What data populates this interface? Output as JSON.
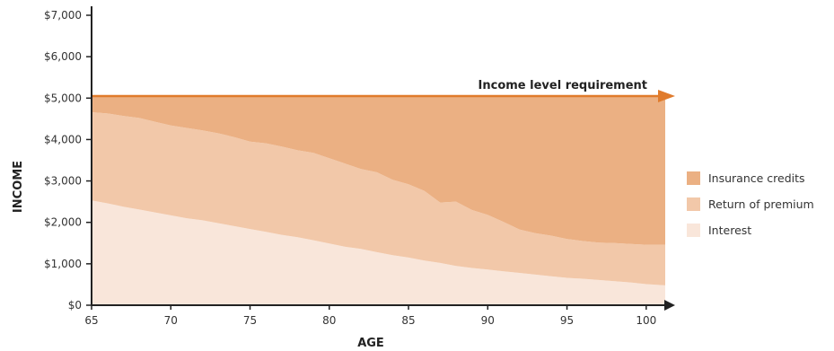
{
  "chart_data": {
    "type": "area",
    "stacked": true,
    "title": "",
    "xlabel": "AGE",
    "ylabel": "INCOME",
    "xlim": [
      65,
      101.2
    ],
    "ylim": [
      0,
      7000
    ],
    "x_ticks": [
      65,
      70,
      75,
      80,
      85,
      90,
      95,
      100
    ],
    "y_ticks": [
      0,
      1000,
      2000,
      3000,
      4000,
      5000,
      6000,
      7000
    ],
    "y_tick_labels": [
      "$0",
      "$1,000",
      "$2,000",
      "$3,000",
      "$4,000",
      "$5,000",
      "$6,000",
      "$7,000"
    ],
    "grid": false,
    "legend_position": "right",
    "x": [
      65,
      66,
      67,
      68,
      69,
      70,
      71,
      72,
      73,
      74,
      75,
      76,
      77,
      78,
      79,
      80,
      81,
      82,
      83,
      84,
      85,
      86,
      87,
      88,
      89,
      90,
      91,
      92,
      93,
      94,
      95,
      96,
      97,
      98,
      99,
      100,
      101.2
    ],
    "series": [
      {
        "name": "Interest",
        "color": "#f9e6da",
        "values": [
          2530,
          2460,
          2380,
          2310,
          2240,
          2170,
          2100,
          2050,
          1980,
          1910,
          1840,
          1770,
          1700,
          1640,
          1570,
          1490,
          1410,
          1360,
          1280,
          1210,
          1150,
          1080,
          1020,
          950,
          900,
          860,
          820,
          780,
          740,
          700,
          660,
          640,
          610,
          580,
          550,
          510,
          480
        ]
      },
      {
        "name": "Return of premium",
        "color": "#f2c8a9",
        "values": [
          2130,
          2170,
          2190,
          2210,
          2190,
          2170,
          2180,
          2170,
          2170,
          2150,
          2110,
          2140,
          2130,
          2100,
          2110,
          2060,
          2010,
          1930,
          1930,
          1820,
          1770,
          1680,
          1460,
          1550,
          1400,
          1320,
          1190,
          1050,
          1000,
          980,
          940,
          910,
          900,
          920,
          930,
          950,
          980
        ]
      },
      {
        "name": "Insurance credits",
        "color": "#ebb083",
        "values": [
          390,
          420,
          480,
          530,
          620,
          710,
          770,
          830,
          900,
          990,
          1100,
          1140,
          1220,
          1310,
          1370,
          1500,
          1630,
          1760,
          1840,
          2020,
          2130,
          2290,
          2570,
          2550,
          2750,
          2870,
          3040,
          3220,
          3310,
          3370,
          3450,
          3500,
          3540,
          3550,
          3570,
          3590,
          3590
        ]
      }
    ],
    "legend_order": [
      "Insurance credits",
      "Return of premium",
      "Interest"
    ],
    "reference_line": {
      "value": 5050,
      "label": "Income level requirement",
      "color": "#e07b2c"
    },
    "axis_color": "#222222"
  }
}
